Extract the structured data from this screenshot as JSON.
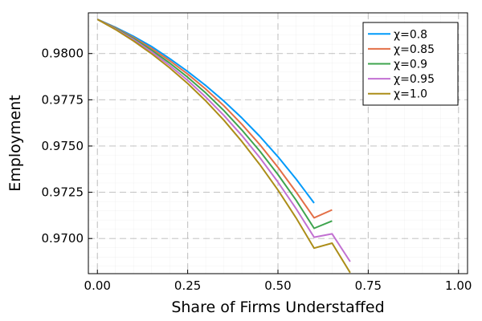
{
  "chart_data": {
    "type": "line",
    "title": "",
    "xlabel": "Share of Firms Understaffed",
    "ylabel": "Employment",
    "xlim": [
      -0.025,
      1.025
    ],
    "ylim": [
      0.9681,
      0.9822
    ],
    "xticks": [
      0.0,
      0.25,
      0.5,
      0.75,
      1.0
    ],
    "xtick_labels": [
      "0.00",
      "0.25",
      "0.50",
      "0.75",
      "1.00"
    ],
    "yticks": [
      0.97,
      0.9725,
      0.975,
      0.9775,
      0.98
    ],
    "ytick_labels": [
      "0.9700",
      "0.9725",
      "0.9750",
      "0.9775",
      "0.9800"
    ],
    "grid": true,
    "legend_position": "top-right",
    "series": [
      {
        "name": "χ=0.8",
        "color": "#009AFA",
        "x": [
          0.0,
          0.05,
          0.1,
          0.15,
          0.2,
          0.25,
          0.3,
          0.35,
          0.4,
          0.45,
          0.5,
          0.55,
          0.6
        ],
        "y": [
          0.98185,
          0.98142,
          0.98093,
          0.98038,
          0.97973,
          0.97903,
          0.97827,
          0.97743,
          0.97652,
          0.97552,
          0.97442,
          0.97322,
          0.97192
        ]
      },
      {
        "name": "χ=0.85",
        "color": "#E36F47",
        "x": [
          0.0,
          0.05,
          0.1,
          0.15,
          0.2,
          0.25,
          0.3,
          0.35,
          0.4,
          0.45,
          0.5,
          0.55,
          0.6,
          0.65
        ],
        "y": [
          0.98185,
          0.98139,
          0.98087,
          0.98028,
          0.97962,
          0.97889,
          0.97808,
          0.97718,
          0.97618,
          0.97507,
          0.97385,
          0.97252,
          0.97112,
          0.97155
        ]
      },
      {
        "name": "χ=0.9",
        "color": "#3EA44E",
        "x": [
          0.0,
          0.05,
          0.1,
          0.15,
          0.2,
          0.25,
          0.3,
          0.35,
          0.4,
          0.45,
          0.5,
          0.55,
          0.6,
          0.65
        ],
        "y": [
          0.98185,
          0.98136,
          0.98081,
          0.98018,
          0.97949,
          0.97872,
          0.97787,
          0.97692,
          0.97587,
          0.97472,
          0.97346,
          0.97208,
          0.97055,
          0.97095
        ]
      },
      {
        "name": "χ=0.95",
        "color": "#C271D2",
        "x": [
          0.0,
          0.05,
          0.1,
          0.15,
          0.2,
          0.25,
          0.3,
          0.35,
          0.4,
          0.45,
          0.5,
          0.55,
          0.6,
          0.65,
          0.7
        ],
        "y": [
          0.98185,
          0.98133,
          0.98075,
          0.98009,
          0.97936,
          0.97855,
          0.97765,
          0.97666,
          0.97557,
          0.97437,
          0.97305,
          0.97162,
          0.97007,
          0.97025,
          0.96875
        ]
      },
      {
        "name": "χ=1.0",
        "color": "#AC8D18",
        "x": [
          0.0,
          0.05,
          0.1,
          0.15,
          0.2,
          0.25,
          0.3,
          0.35,
          0.4,
          0.45,
          0.5,
          0.55,
          0.6,
          0.65,
          0.7
        ],
        "y": [
          0.98185,
          0.9813,
          0.98068,
          0.97999,
          0.97923,
          0.97838,
          0.97744,
          0.9764,
          0.97525,
          0.97399,
          0.97262,
          0.97112,
          0.96948,
          0.96975,
          0.96815
        ]
      }
    ]
  }
}
